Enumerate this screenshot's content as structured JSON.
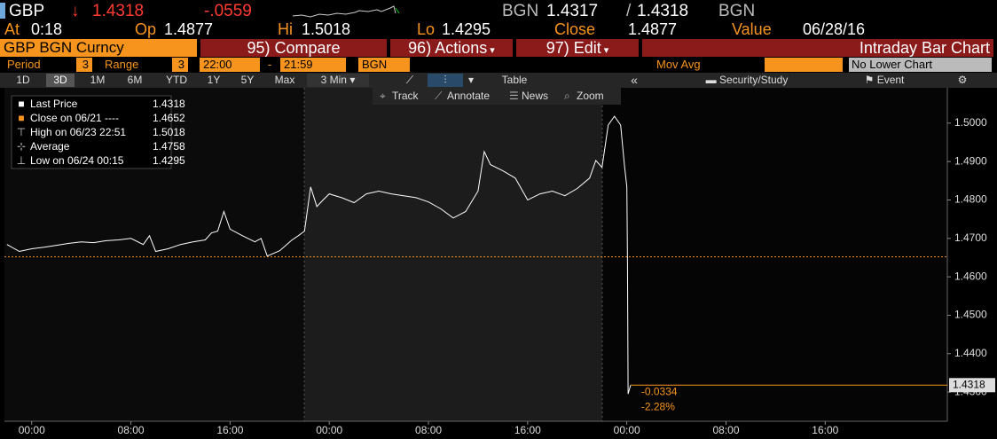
{
  "header": {
    "ticker": "GBP",
    "arrow": "↓",
    "last": "1.4318",
    "change": "-.0559",
    "bid_ccy": "BGN",
    "bid": "1.4317",
    "sep": "/",
    "ask": "1.4318",
    "ask_ccy": "BGN"
  },
  "quote": [
    {
      "label": "At",
      "value": "0:18"
    },
    {
      "label": "Op",
      "value": "1.4877"
    },
    {
      "label": "Hi",
      "value": "1.5018"
    },
    {
      "label": "Lo",
      "value": "1.4295"
    },
    {
      "label": "Close",
      "value": "1.4877"
    },
    {
      "label": "Value",
      "value": "06/28/16"
    }
  ],
  "menu": {
    "security": "GBP BGN Curncy",
    "items": [
      "95) Compare",
      "96) Actions",
      "97) Edit"
    ],
    "view": "Intraday Bar Chart"
  },
  "settings": {
    "period_label": "Period",
    "period": "3",
    "range_label": "Range",
    "range": "3",
    "from": "22:00",
    "dash": "-",
    "to": "21:59",
    "currency": "BGN",
    "mov_avg": "Mov Avg",
    "lower_chart": "No Lower Chart"
  },
  "toolbar": {
    "ranges": [
      "1D",
      "3D",
      "1M",
      "6M",
      "YTD",
      "1Y",
      "5Y",
      "Max"
    ],
    "selected_range": 1,
    "interval": "3 Min",
    "table": "Table",
    "tools": [
      "Security/Study",
      "Event"
    ]
  },
  "chart_tools": [
    "Track",
    "Annotate",
    "News",
    "Zoom"
  ],
  "chart_data": {
    "type": "line",
    "legend": [
      {
        "name": "Last Price",
        "value": 1.4318,
        "color": "#ffffff"
      },
      {
        "name": "Close on 06/21 ----",
        "value": 1.4652,
        "color": "#f7941d"
      },
      {
        "name": "High on 06/23 22:51",
        "value": 1.5018
      },
      {
        "name": "Average",
        "value": 1.4758
      },
      {
        "name": "Low on 06/24 00:15",
        "value": 1.4295
      }
    ],
    "x": [
      -2,
      -1,
      0,
      1,
      2,
      3,
      4,
      5,
      6,
      7,
      8,
      9,
      9.5,
      10,
      11,
      12,
      13,
      14,
      14.5,
      15,
      15.5,
      16,
      17,
      18,
      18.5,
      19,
      20,
      21,
      21.5,
      22,
      22.5,
      23,
      23.5,
      24,
      25,
      26,
      27,
      28,
      29,
      30,
      31,
      32,
      33,
      34,
      35,
      36,
      36.5,
      37,
      38,
      39,
      40,
      41,
      42,
      43,
      44,
      45,
      45.5,
      46,
      46.5,
      47,
      47.5,
      47.8,
      48,
      48.05,
      48.1,
      48.3
    ],
    "series": [
      {
        "name": "Last Price",
        "color": "#ffffff",
        "values": [
          1.4684,
          1.4666,
          1.4673,
          1.4677,
          1.4682,
          1.4687,
          1.4691,
          1.4689,
          1.4694,
          1.4696,
          1.47,
          1.4684,
          1.4707,
          1.4666,
          1.4673,
          1.4684,
          1.4691,
          1.4696,
          1.4714,
          1.4719,
          1.477,
          1.4724,
          1.4707,
          1.4691,
          1.47,
          1.4654,
          1.4668,
          1.4696,
          1.4707,
          1.4719,
          1.4834,
          1.4783,
          1.48,
          1.4816,
          1.4806,
          1.4793,
          1.4816,
          1.4823,
          1.4816,
          1.4811,
          1.4806,
          1.4795,
          1.4777,
          1.4753,
          1.477,
          1.4823,
          1.4926,
          1.4892,
          1.4876,
          1.4857,
          1.48,
          1.4816,
          1.4823,
          1.4811,
          1.483,
          1.4857,
          1.4903,
          1.4885,
          1.4995,
          1.5018,
          1.4995,
          1.4892,
          1.4834,
          1.4638,
          1.4295,
          1.4318
        ]
      }
    ],
    "xlim": [
      -2.2,
      73.85
    ],
    "xticks": [
      {
        "value": 0,
        "label": "00:00"
      },
      {
        "value": 8,
        "label": "08:00"
      },
      {
        "value": 16,
        "label": "16:00"
      },
      {
        "value": 24,
        "label": "00:00"
      },
      {
        "value": 32,
        "label": "08:00"
      },
      {
        "value": 40,
        "label": "16:00"
      },
      {
        "value": 48,
        "label": "00:00"
      },
      {
        "value": 56,
        "label": "08:00"
      },
      {
        "value": 64,
        "label": "16:00"
      }
    ],
    "ylim": [
      1.4224,
      1.5092
    ],
    "yticks": [
      {
        "value": 1.43,
        "label": "1.4300"
      },
      {
        "value": 1.44,
        "label": "1.4400"
      },
      {
        "value": 1.45,
        "label": "1.4500"
      },
      {
        "value": 1.46,
        "label": "1.4600"
      },
      {
        "value": 1.47,
        "label": "1.4700"
      },
      {
        "value": 1.48,
        "label": "1.4800"
      },
      {
        "value": 1.49,
        "label": "1.4900"
      },
      {
        "value": 1.5,
        "label": "1.5000"
      }
    ],
    "annotations": [
      "-0.0334",
      "-2.28%"
    ]
  }
}
